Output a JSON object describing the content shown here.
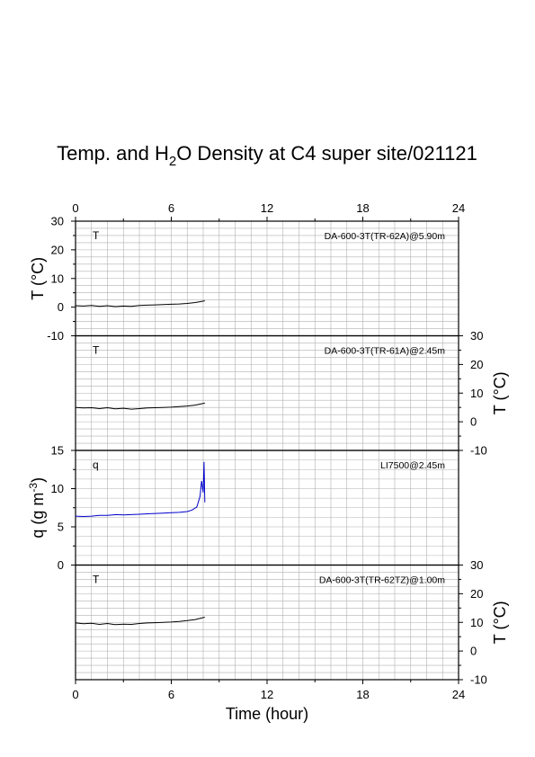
{
  "title": {
    "prefix": "Temp. and H",
    "sub": "2",
    "suffix": "O Density at C4 super site/021121"
  },
  "x_axis": {
    "label": "Time (hour)",
    "ticks": [
      "0",
      "6",
      "12",
      "18",
      "24"
    ]
  },
  "chart_data": [
    {
      "type": "line",
      "panel_letter": "T",
      "sensor": "DA-600-3T(TR-62A)@5.90m",
      "ylabel": "T (°C)",
      "ylabel_side": "left",
      "ylim": [
        -10,
        30
      ],
      "yticks": [
        "-10",
        "0",
        "10",
        "20",
        "30"
      ],
      "xlim": [
        0,
        24
      ],
      "color": "#000000",
      "series": [
        {
          "x": [
            0,
            0.5,
            1,
            1.5,
            2,
            2.5,
            3,
            3.5,
            4,
            4.5,
            5,
            5.5,
            6,
            6.5,
            7,
            7.5,
            8.1
          ],
          "y": [
            0.5,
            0.4,
            0.6,
            0.3,
            0.5,
            0.2,
            0.4,
            0.3,
            0.6,
            0.7,
            0.8,
            0.9,
            1.0,
            1.1,
            1.3,
            1.6,
            2.2
          ]
        }
      ]
    },
    {
      "type": "line",
      "panel_letter": "T",
      "sensor": "DA-600-3T(TR-61A)@2.45m",
      "ylabel": "T (°C)",
      "ylabel_side": "right",
      "ylim": [
        -10,
        30
      ],
      "yticks": [
        "-10",
        "0",
        "10",
        "20",
        "30"
      ],
      "xlim": [
        0,
        24
      ],
      "color": "#000000",
      "series": [
        {
          "x": [
            0,
            0.5,
            1,
            1.5,
            2,
            2.5,
            3,
            3.5,
            4,
            4.5,
            5,
            5.5,
            6,
            6.5,
            7,
            7.5,
            8.1
          ],
          "y": [
            5.0,
            4.8,
            4.9,
            4.6,
            4.9,
            4.5,
            4.7,
            4.4,
            4.6,
            4.8,
            4.9,
            5.0,
            5.1,
            5.3,
            5.5,
            5.8,
            6.5
          ]
        }
      ]
    },
    {
      "type": "line",
      "panel_letter": "q",
      "sensor": "LI7500@2.45m",
      "ylabel_html": {
        "prefix": "q (g m",
        "sup": "-3",
        "suffix": ")"
      },
      "ylabel_side": "left",
      "ylim": [
        0,
        15
      ],
      "yticks": [
        "0",
        "5",
        "10",
        "15"
      ],
      "xlim": [
        0,
        24
      ],
      "color": "#0000cc",
      "series": [
        {
          "x": [
            0,
            0.5,
            1,
            1.5,
            2,
            2.5,
            3,
            3.5,
            4,
            4.5,
            5,
            5.5,
            6,
            6.5,
            7,
            7.3,
            7.6,
            7.8,
            7.9,
            8.0,
            8.05,
            8.1
          ],
          "y": [
            6.4,
            6.35,
            6.4,
            6.5,
            6.5,
            6.6,
            6.55,
            6.6,
            6.65,
            6.7,
            6.75,
            6.8,
            6.85,
            6.9,
            7.0,
            7.2,
            7.6,
            9.0,
            11.0,
            9.5,
            13.5,
            8.2
          ]
        }
      ]
    },
    {
      "type": "line",
      "panel_letter": "T",
      "sensor": "DA-600-3T(TR-62TZ)@1.00m",
      "ylabel": "T (°C)",
      "ylabel_side": "right",
      "ylim": [
        -10,
        30
      ],
      "yticks": [
        "-10",
        "0",
        "10",
        "20",
        "30"
      ],
      "xlim": [
        0,
        24
      ],
      "color": "#000000",
      "series": [
        {
          "x": [
            0,
            0.5,
            1,
            1.5,
            2,
            2.5,
            3,
            3.5,
            4,
            4.5,
            5,
            5.5,
            6,
            6.5,
            7,
            7.5,
            8.1
          ],
          "y": [
            9.8,
            9.5,
            9.7,
            9.3,
            9.6,
            9.2,
            9.4,
            9.3,
            9.6,
            9.8,
            9.9,
            10.0,
            10.1,
            10.3,
            10.6,
            11.0,
            11.8
          ]
        }
      ]
    }
  ]
}
